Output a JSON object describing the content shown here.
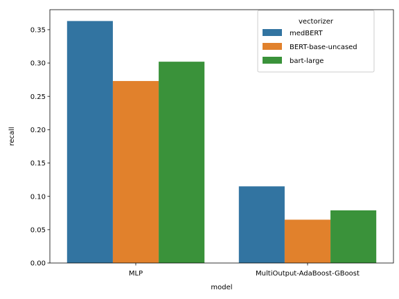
{
  "chart_data": {
    "type": "bar",
    "categories": [
      "MLP",
      "MultiOutput-AdaBoost-GBoost"
    ],
    "series": [
      {
        "name": "medBERT",
        "values": [
          0.363,
          0.115
        ],
        "color": "#3274a1"
      },
      {
        "name": "BERT-base-uncased",
        "values": [
          0.273,
          0.065
        ],
        "color": "#e1812c"
      },
      {
        "name": "bart-large",
        "values": [
          0.302,
          0.079
        ],
        "color": "#3a923a"
      }
    ],
    "xlabel": "model",
    "ylabel": "recall",
    "ylim": [
      0,
      0.38
    ],
    "yticks": [
      "0.00",
      "0.05",
      "0.10",
      "0.15",
      "0.20",
      "0.25",
      "0.30",
      "0.35"
    ],
    "legend": {
      "title": "vectorizer",
      "position": "top-right"
    },
    "grid": false
  }
}
